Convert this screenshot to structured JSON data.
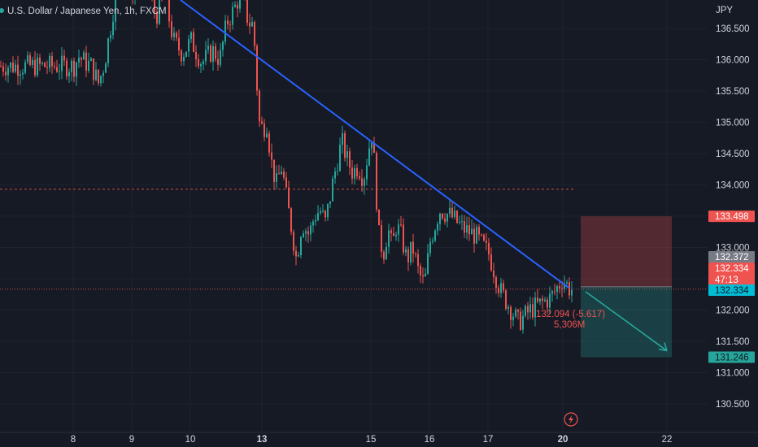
{
  "chart_title": "U.S. Dollar / Japanese Yen, 1h, FXCM",
  "currency": "JPY",
  "colors": {
    "background": "#161a25",
    "up": "#26a69a",
    "down": "#ef5350",
    "trendline": "#2962ff",
    "grid": "#1e222d",
    "text": "#d1d4dc"
  },
  "chart_data": {
    "type": "candlestick",
    "title": "U.S. Dollar / Japanese Yen, 1h, FXCM",
    "ylabel": "JPY",
    "ylim": [
      130.2,
      137.15
    ],
    "y_ticks": [
      130.5,
      131.0,
      131.5,
      132.0,
      132.5,
      133.0,
      133.5,
      134.0,
      134.5,
      135.0,
      135.5,
      136.0,
      136.5
    ],
    "y_tick_labels": [
      "130.500",
      "131.000",
      "131.500",
      "132.000",
      "132.500",
      "133.000",
      "133.500",
      "134.000",
      "134.500",
      "135.000",
      "135.500",
      "136.000",
      "136.500"
    ],
    "x_ticks": [
      "8",
      "9",
      "10",
      "13",
      "15",
      "16",
      "17",
      "20",
      "22"
    ],
    "x_ticks_bold": [
      "13",
      "20"
    ],
    "price_path": [
      {
        "t": 0,
        "p": 135.9
      },
      {
        "t": 0.08,
        "p": 136.05
      },
      {
        "t": 0.2,
        "p": 135.95
      },
      {
        "t": 0.3,
        "p": 135.9
      },
      {
        "t": 0.42,
        "p": 135.62
      },
      {
        "t": 0.52,
        "p": 135.95
      },
      {
        "t": 0.62,
        "p": 136.5
      },
      {
        "t": 0.72,
        "p": 137.1
      },
      {
        "t": 0.85,
        "p": 137.2
      },
      {
        "t": 0.95,
        "p": 137.1
      },
      {
        "t": 1.1,
        "p": 137.15
      },
      {
        "t": 1.25,
        "p": 137.2
      },
      {
        "t": 1.4,
        "p": 136.7
      },
      {
        "t": 1.55,
        "p": 137.0
      },
      {
        "t": 1.7,
        "p": 136.3
      },
      {
        "t": 1.85,
        "p": 136.1
      },
      {
        "t": 2.0,
        "p": 136.3
      },
      {
        "t": 2.15,
        "p": 135.95
      },
      {
        "t": 2.3,
        "p": 136.15
      },
      {
        "t": 2.4,
        "p": 136.0
      },
      {
        "t": 2.5,
        "p": 136.6
      },
      {
        "t": 2.6,
        "p": 136.8
      },
      {
        "t": 2.7,
        "p": 137.1
      },
      {
        "t": 2.8,
        "p": 136.6
      },
      {
        "t": 2.87,
        "p": 136.55
      },
      {
        "t": 2.95,
        "p": 135.0
      },
      {
        "t": 3.0,
        "p": 134.9
      },
      {
        "t": 3.08,
        "p": 135.0
      },
      {
        "t": 3.15,
        "p": 134.4
      },
      {
        "t": 3.25,
        "p": 134.0
      },
      {
        "t": 3.35,
        "p": 134.3
      },
      {
        "t": 3.45,
        "p": 133.7
      },
      {
        "t": 3.55,
        "p": 133.2
      },
      {
        "t": 3.62,
        "p": 132.8
      },
      {
        "t": 3.72,
        "p": 133.4
      },
      {
        "t": 3.85,
        "p": 133.2
      },
      {
        "t": 3.95,
        "p": 133.5
      },
      {
        "t": 4.05,
        "p": 133.6
      },
      {
        "t": 4.15,
        "p": 133.4
      },
      {
        "t": 4.3,
        "p": 134.1
      },
      {
        "t": 4.45,
        "p": 134.7
      },
      {
        "t": 4.55,
        "p": 134.4
      },
      {
        "t": 4.65,
        "p": 134.2
      },
      {
        "t": 4.75,
        "p": 134.3
      },
      {
        "t": 4.85,
        "p": 134.1
      },
      {
        "t": 4.95,
        "p": 134.6
      },
      {
        "t": 5.0,
        "p": 134.8
      },
      {
        "t": 5.05,
        "p": 134.3
      },
      {
        "t": 5.12,
        "p": 133.2
      },
      {
        "t": 5.2,
        "p": 132.9
      },
      {
        "t": 5.28,
        "p": 133.3
      },
      {
        "t": 5.35,
        "p": 133.0
      },
      {
        "t": 5.42,
        "p": 133.35
      },
      {
        "t": 5.5,
        "p": 133.2
      },
      {
        "t": 5.6,
        "p": 132.8
      },
      {
        "t": 5.7,
        "p": 133.0
      },
      {
        "t": 5.8,
        "p": 132.6
      },
      {
        "t": 5.9,
        "p": 132.4
      },
      {
        "t": 6.0,
        "p": 133.1
      },
      {
        "t": 6.08,
        "p": 133.6
      },
      {
        "t": 6.18,
        "p": 133.5
      },
      {
        "t": 6.28,
        "p": 133.3
      },
      {
        "t": 6.38,
        "p": 133.2
      },
      {
        "t": 6.5,
        "p": 132.9
      },
      {
        "t": 6.58,
        "p": 132.3
      },
      {
        "t": 6.7,
        "p": 131.8
      },
      {
        "t": 6.78,
        "p": 132.0
      },
      {
        "t": 6.85,
        "p": 132.1
      },
      {
        "t": 6.92,
        "p": 132.2
      },
      {
        "t": 7.0,
        "p": 132.5
      },
      {
        "t": 7.05,
        "p": 132.33
      }
    ],
    "trendline": {
      "start": {
        "t": 1.25,
        "p": 137.15
      },
      "end": {
        "t": 6.95,
        "p": 132.35
      }
    },
    "horizontal_lines": [
      {
        "price": 133.93,
        "style": "dashed",
        "color": "#ef5350"
      },
      {
        "price": 132.334,
        "style": "dotted",
        "color": "#ef5350"
      }
    ],
    "position": {
      "type": "short",
      "entry": 132.372,
      "stop": 133.498,
      "target": 131.246
    },
    "annotation": {
      "line1": "132.094 (-5.617)",
      "line2": "5,306M"
    },
    "price_tags": [
      {
        "label": "133.498",
        "bg": "#ef5350",
        "fg": "#ffffff",
        "price": 133.498
      },
      {
        "label": "132.372",
        "bg": "#787b86",
        "fg": "#ffffff",
        "price": 132.372
      },
      {
        "label": "132.334",
        "bg": "#ef5350",
        "fg": "#ffffff",
        "price": 132.334,
        "sub": "47:13"
      },
      {
        "label": "132.334",
        "bg": "#00bcd4",
        "fg": "#131722",
        "price": 132.334
      },
      {
        "label": "131.246",
        "bg": "#26a69a",
        "fg": "#131722",
        "price": 131.246
      }
    ]
  }
}
